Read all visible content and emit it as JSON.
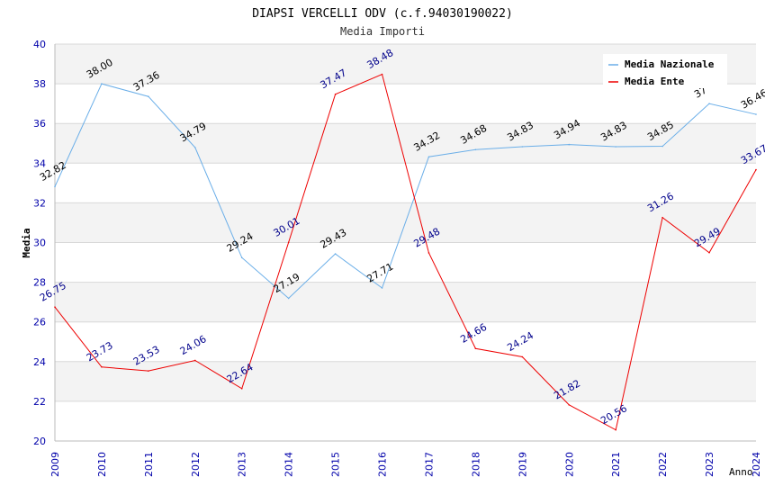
{
  "chart_data": {
    "type": "line",
    "title": "DIAPSI VERCELLI ODV (c.f.94030190022)",
    "subtitle": "Media Importi",
    "xlabel": "Anno",
    "ylabel": "Media",
    "ylim": [
      20,
      40
    ],
    "yticks": [
      "20",
      "22",
      "24",
      "26",
      "28",
      "30",
      "32",
      "34",
      "36",
      "38",
      "40"
    ],
    "x": [
      "2009",
      "2010",
      "2011",
      "2012",
      "2013",
      "2014",
      "2015",
      "2016",
      "2017",
      "2018",
      "2019",
      "2020",
      "2021",
      "2022",
      "2023",
      "2024"
    ],
    "grid": true,
    "legend_position": "top-right",
    "series": [
      {
        "name": "Media Nazionale",
        "color": "#6aaee8",
        "label_color": "#000000",
        "values": [
          32.82,
          38.0,
          37.36,
          34.79,
          29.24,
          27.19,
          29.43,
          27.71,
          34.32,
          34.68,
          34.83,
          34.94,
          34.83,
          34.85,
          37.0,
          36.46
        ],
        "labels": [
          "32.82",
          "38.00",
          "37.36",
          "34.79",
          "29.24",
          "27.19",
          "29.43",
          "27.71",
          "34.32",
          "34.68",
          "34.83",
          "34.94",
          "34.83",
          "34.85",
          "37",
          "36.46"
        ]
      },
      {
        "name": "Media Ente",
        "color": "#ee0000",
        "label_color": "#00008b",
        "values": [
          26.75,
          23.73,
          23.53,
          24.06,
          22.64,
          30.01,
          37.47,
          38.48,
          29.48,
          24.66,
          24.24,
          21.82,
          20.56,
          31.26,
          29.49,
          33.67
        ],
        "labels": [
          "26.75",
          "23.73",
          "23.53",
          "24.06",
          "22.64",
          "30.01",
          "37.47",
          "38.48",
          "29.48",
          "24.66",
          "24.24",
          "21.82",
          "20.56",
          "31.26",
          "29.49",
          "33.67"
        ]
      }
    ]
  }
}
